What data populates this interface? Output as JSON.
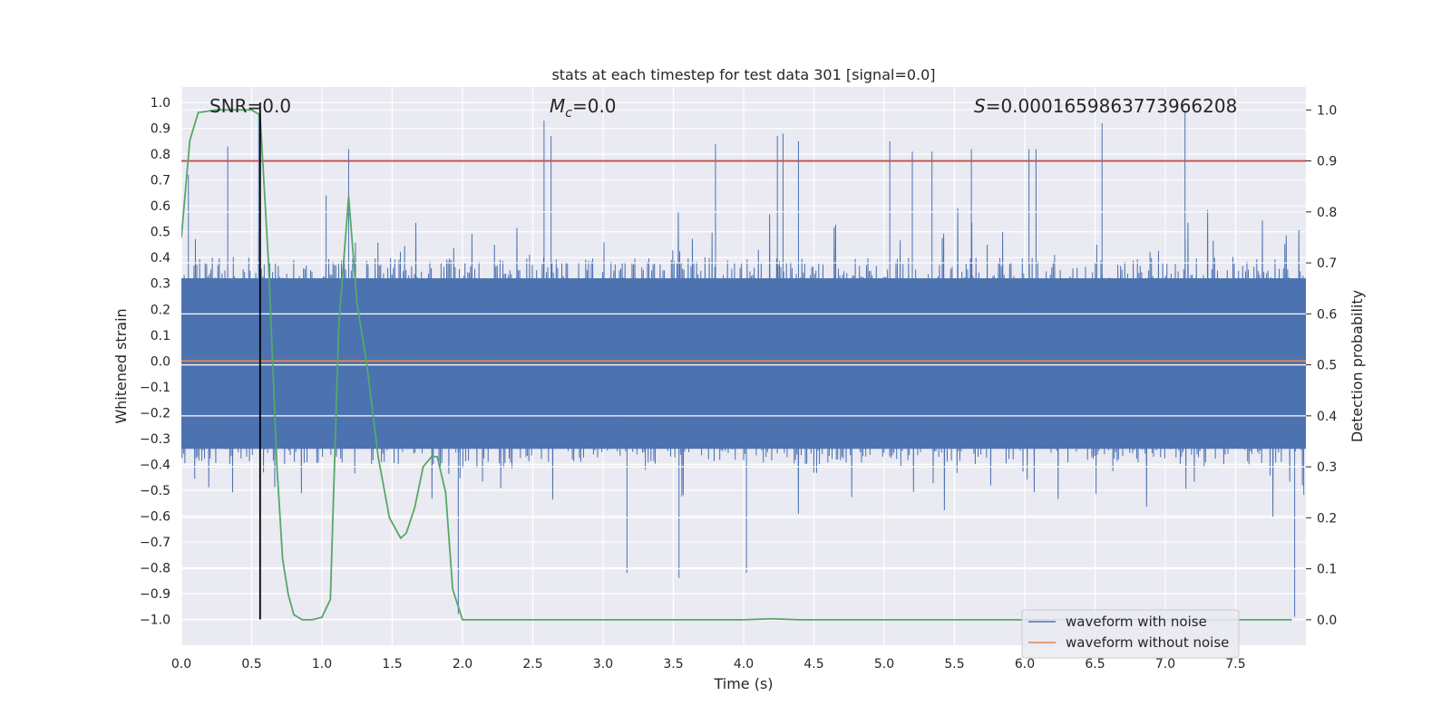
{
  "chart_data": {
    "type": "line",
    "title": "stats at each timestep for test data 301 [signal=0.0]",
    "xlabel": "Time (s)",
    "ylabel_left": "Whitened strain",
    "ylabel_right": "Detection probability",
    "xlim": [
      0.0,
      8.0
    ],
    "ylim_left": [
      -1.1,
      1.06
    ],
    "ylim_right": [
      -0.05,
      1.045
    ],
    "x_ticks": [
      0.0,
      0.5,
      1.0,
      1.5,
      2.0,
      2.5,
      3.0,
      3.5,
      4.0,
      4.5,
      5.0,
      5.5,
      6.0,
      6.5,
      7.0,
      7.5
    ],
    "x_tick_labels": [
      "0.0",
      "0.5",
      "1.0",
      "1.5",
      "2.0",
      "2.5",
      "3.0",
      "3.5",
      "4.0",
      "4.5",
      "5.0",
      "5.5",
      "6.0",
      "6.5",
      "7.0",
      "7.5"
    ],
    "y_left_ticks": [
      1.0,
      0.9,
      0.8,
      0.7,
      0.6,
      0.5,
      0.4,
      0.3,
      0.2,
      0.1,
      0.0,
      -0.1,
      -0.2,
      -0.3,
      -0.4,
      -0.5,
      -0.6,
      -0.7,
      -0.8,
      -0.9,
      -1.0
    ],
    "y_left_tick_labels": [
      "1.0",
      "0.9",
      "0.8",
      "0.7",
      "0.6",
      "0.5",
      "0.4",
      "0.3",
      "0.2",
      "0.1",
      "0.0",
      "−0.1",
      "−0.2",
      "−0.3",
      "−0.4",
      "−0.5",
      "−0.6",
      "−0.7",
      "−0.8",
      "−0.9",
      "−1.0"
    ],
    "y_right_ticks": [
      1.0,
      0.9,
      0.8,
      0.7,
      0.6,
      0.5,
      0.4,
      0.3,
      0.2,
      0.1,
      0.0
    ],
    "y_right_tick_labels": [
      "1.0",
      "0.9",
      "0.8",
      "0.7",
      "0.6",
      "0.5",
      "0.4",
      "0.3",
      "0.2",
      "0.1",
      "0.0"
    ],
    "annotations": {
      "snr": "SNR=0.0",
      "mc_symbol": "M",
      "mc_sub": "c",
      "mc_value": "=0.0",
      "s_symbol": "S",
      "s_value": "=0.0001659863773966208"
    },
    "threshold": {
      "axis": "right",
      "value": 0.9,
      "color": "#c44e52"
    },
    "marker_line": {
      "x": 0.56,
      "from": -1.0,
      "to": 1.0,
      "color": "#000000"
    },
    "series": [
      {
        "name": "waveform with noise",
        "axis": "left",
        "color": "#4c72b0",
        "note": "dense noise trace; envelope approx ±0.3 to ±0.6 with spikes",
        "spikes_x": [
          0.05,
          0.33,
          0.55,
          1.03,
          1.19,
          1.97,
          2.58,
          2.63,
          3.17,
          3.54,
          3.8,
          4.02,
          4.24,
          4.28,
          4.39,
          5.04,
          5.2,
          5.34,
          5.62,
          6.03,
          6.08,
          6.55,
          7.14,
          7.92
        ],
        "spikes_y": [
          0.72,
          0.83,
          0.96,
          0.64,
          0.82,
          -0.98,
          0.93,
          0.87,
          -0.82,
          -0.84,
          0.84,
          -0.82,
          0.87,
          0.88,
          0.85,
          0.85,
          0.81,
          0.81,
          0.82,
          0.82,
          0.82,
          0.92,
          0.97,
          -0.99
        ]
      },
      {
        "name": "waveform without noise",
        "axis": "left",
        "color": "#dd8452",
        "x": [
          0.0,
          8.0
        ],
        "values": [
          0.0,
          0.0
        ]
      },
      {
        "name": "detection probability",
        "axis": "right",
        "color": "#55a868",
        "x": [
          0.0,
          0.06,
          0.12,
          0.25,
          0.5,
          0.56,
          0.62,
          0.68,
          0.72,
          0.76,
          0.8,
          0.86,
          0.93,
          1.0,
          1.06,
          1.12,
          1.19,
          1.25,
          1.32,
          1.4,
          1.48,
          1.56,
          1.6,
          1.66,
          1.72,
          1.78,
          1.82,
          1.88,
          1.93,
          2.0,
          2.1,
          3.0,
          4.0,
          4.2,
          4.4,
          7.9
        ],
        "values": [
          0.75,
          0.94,
          0.995,
          1.0,
          1.0,
          0.99,
          0.7,
          0.3,
          0.12,
          0.05,
          0.01,
          0.0,
          0.0,
          0.005,
          0.04,
          0.58,
          0.83,
          0.62,
          0.5,
          0.32,
          0.2,
          0.16,
          0.17,
          0.22,
          0.3,
          0.32,
          0.32,
          0.25,
          0.06,
          0.0,
          0.0,
          0.0,
          0.0,
          0.002,
          0.0,
          0.0
        ]
      }
    ],
    "legend": {
      "placement": "lower-right",
      "entries": [
        {
          "label": "waveform with noise",
          "color": "#4c72b0"
        },
        {
          "label": "waveform without noise",
          "color": "#dd8452"
        }
      ]
    }
  }
}
